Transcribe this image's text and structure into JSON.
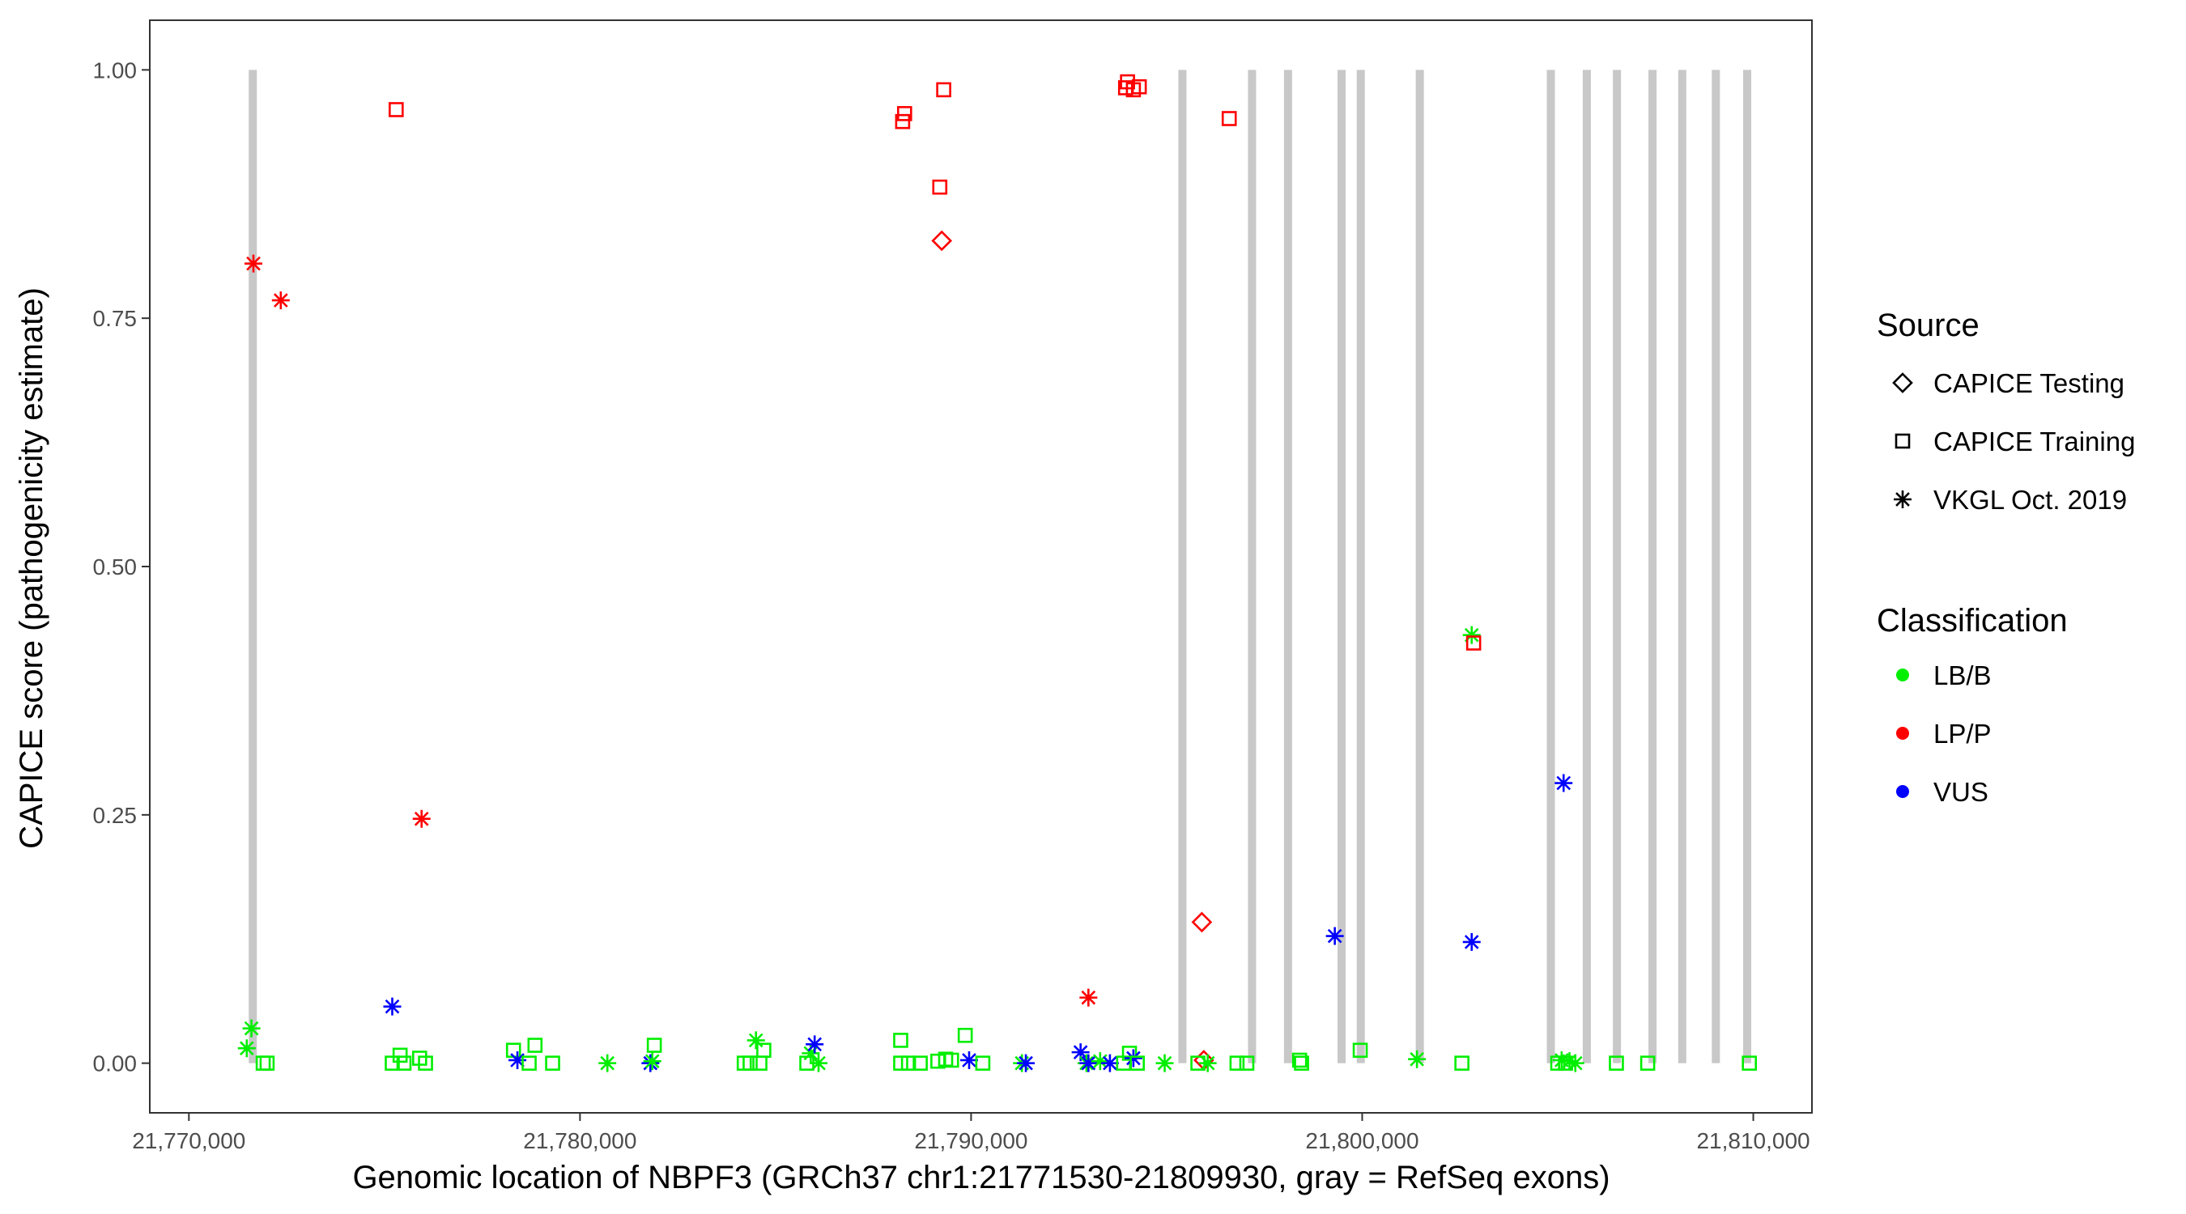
{
  "chart_data": {
    "type": "scatter",
    "xlabel": "Genomic location of NBPF3 (GRCh37 chr1:21771530-21809930, gray = RefSeq exons)",
    "ylabel": "CAPICE score (pathogenicity estimate)",
    "xlim": [
      21769000,
      21811500
    ],
    "ylim": [
      -0.05,
      1.05
    ],
    "x_ticks": [
      21770000,
      21780000,
      21790000,
      21800000,
      21810000
    ],
    "x_tick_labels": [
      "21,770,000",
      "21,780,000",
      "21,790,000",
      "21,800,000",
      "21,810,000"
    ],
    "y_ticks": [
      0,
      0.25,
      0.5,
      0.75,
      1.0
    ],
    "y_tick_labels": [
      "0.00",
      "0.25",
      "0.50",
      "0.75",
      "1.00"
    ],
    "grid": false,
    "exon_color": "#c8c8c8",
    "exons": [
      [
        21771530,
        21771680
      ],
      [
        21795300,
        21795430
      ],
      [
        21797080,
        21797170
      ],
      [
        21798000,
        21798110
      ],
      [
        21799370,
        21799420
      ],
      [
        21799860,
        21799990
      ],
      [
        21801370,
        21801430
      ],
      [
        21804720,
        21804820
      ],
      [
        21805640,
        21805700
      ],
      [
        21806410,
        21806510
      ],
      [
        21807320,
        21807390
      ],
      [
        21808080,
        21808170
      ],
      [
        21808940,
        21808990
      ],
      [
        21809740,
        21809860
      ]
    ],
    "legend_position": "right",
    "legend_source_title": "Source",
    "legend_class_title": "Classification",
    "source_items": [
      {
        "name": "CAPICE Testing",
        "shape": "diamond"
      },
      {
        "name": "CAPICE Training",
        "shape": "square"
      },
      {
        "name": "VKGL Oct. 2019",
        "shape": "star"
      }
    ],
    "class_items": [
      {
        "name": "LB/B",
        "color": "#00ee00"
      },
      {
        "name": "LP/P",
        "color": "#ff0000"
      },
      {
        "name": "VUS",
        "color": "#0000ff"
      }
    ],
    "points": [
      {
        "x": 21771480,
        "y": 0.015,
        "source": "VKGL Oct. 2019",
        "class": "LB/B"
      },
      {
        "x": 21771600,
        "y": 0.035,
        "source": "VKGL Oct. 2019",
        "class": "LB/B"
      },
      {
        "x": 21771900,
        "y": 0.0,
        "source": "CAPICE Training",
        "class": "LB/B"
      },
      {
        "x": 21772000,
        "y": 0.0,
        "source": "CAPICE Training",
        "class": "LB/B"
      },
      {
        "x": 21771650,
        "y": 0.805,
        "source": "VKGL Oct. 2019",
        "class": "LP/P"
      },
      {
        "x": 21772350,
        "y": 0.768,
        "source": "VKGL Oct. 2019",
        "class": "LP/P"
      },
      {
        "x": 21775300,
        "y": 0.96,
        "source": "CAPICE Training",
        "class": "LP/P"
      },
      {
        "x": 21775200,
        "y": 0.057,
        "source": "VKGL Oct. 2019",
        "class": "VUS"
      },
      {
        "x": 21775200,
        "y": 0.0,
        "source": "CAPICE Training",
        "class": "LB/B"
      },
      {
        "x": 21775400,
        "y": 0.008,
        "source": "CAPICE Training",
        "class": "LB/B"
      },
      {
        "x": 21775500,
        "y": 0.0,
        "source": "CAPICE Training",
        "class": "LB/B"
      },
      {
        "x": 21775900,
        "y": 0.005,
        "source": "CAPICE Training",
        "class": "LB/B"
      },
      {
        "x": 21776050,
        "y": 0.0,
        "source": "CAPICE Training",
        "class": "LB/B"
      },
      {
        "x": 21775950,
        "y": 0.246,
        "source": "VKGL Oct. 2019",
        "class": "LP/P"
      },
      {
        "x": 21778300,
        "y": 0.013,
        "source": "CAPICE Training",
        "class": "LB/B"
      },
      {
        "x": 21778400,
        "y": 0.003,
        "source": "VKGL Oct. 2019",
        "class": "VUS"
      },
      {
        "x": 21778700,
        "y": 0.0,
        "source": "CAPICE Training",
        "class": "LB/B"
      },
      {
        "x": 21778850,
        "y": 0.018,
        "source": "CAPICE Training",
        "class": "LB/B"
      },
      {
        "x": 21779300,
        "y": 0.0,
        "source": "CAPICE Training",
        "class": "LB/B"
      },
      {
        "x": 21780700,
        "y": 0.0,
        "source": "VKGL Oct. 2019",
        "class": "LB/B"
      },
      {
        "x": 21781800,
        "y": 0.0,
        "source": "VKGL Oct. 2019",
        "class": "VUS"
      },
      {
        "x": 21781850,
        "y": 0.002,
        "source": "VKGL Oct. 2019",
        "class": "LB/B"
      },
      {
        "x": 21781900,
        "y": 0.018,
        "source": "CAPICE Training",
        "class": "LB/B"
      },
      {
        "x": 21784200,
        "y": 0.0,
        "source": "CAPICE Training",
        "class": "LB/B"
      },
      {
        "x": 21784350,
        "y": 0.0,
        "source": "CAPICE Training",
        "class": "LB/B"
      },
      {
        "x": 21784500,
        "y": 0.023,
        "source": "VKGL Oct. 2019",
        "class": "LB/B"
      },
      {
        "x": 21784600,
        "y": 0.0,
        "source": "CAPICE Training",
        "class": "LB/B"
      },
      {
        "x": 21784700,
        "y": 0.013,
        "source": "CAPICE Training",
        "class": "LB/B"
      },
      {
        "x": 21785800,
        "y": 0.0,
        "source": "CAPICE Training",
        "class": "LB/B"
      },
      {
        "x": 21785900,
        "y": 0.01,
        "source": "VKGL Oct. 2019",
        "class": "LB/B"
      },
      {
        "x": 21786000,
        "y": 0.019,
        "source": "VKGL Oct. 2019",
        "class": "VUS"
      },
      {
        "x": 21786100,
        "y": 0.0,
        "source": "VKGL Oct. 2019",
        "class": "LB/B"
      },
      {
        "x": 21788200,
        "y": 0.023,
        "source": "CAPICE Training",
        "class": "LB/B"
      },
      {
        "x": 21788200,
        "y": 0.0,
        "source": "CAPICE Training",
        "class": "LB/B"
      },
      {
        "x": 21788400,
        "y": 0.0,
        "source": "CAPICE Training",
        "class": "LB/B"
      },
      {
        "x": 21788700,
        "y": 0.0,
        "source": "CAPICE Training",
        "class": "LB/B"
      },
      {
        "x": 21788250,
        "y": 0.948,
        "source": "CAPICE Training",
        "class": "LP/P"
      },
      {
        "x": 21788300,
        "y": 0.956,
        "source": "CAPICE Training",
        "class": "LP/P"
      },
      {
        "x": 21789300,
        "y": 0.98,
        "source": "CAPICE Training",
        "class": "LP/P"
      },
      {
        "x": 21789200,
        "y": 0.882,
        "source": "CAPICE Training",
        "class": "LP/P"
      },
      {
        "x": 21789250,
        "y": 0.828,
        "source": "CAPICE Testing",
        "class": "LP/P"
      },
      {
        "x": 21789150,
        "y": 0.002,
        "source": "CAPICE Training",
        "class": "LB/B"
      },
      {
        "x": 21789350,
        "y": 0.004,
        "source": "CAPICE Training",
        "class": "LB/B"
      },
      {
        "x": 21789500,
        "y": 0.003,
        "source": "CAPICE Training",
        "class": "LB/B"
      },
      {
        "x": 21789850,
        "y": 0.028,
        "source": "CAPICE Training",
        "class": "LB/B"
      },
      {
        "x": 21789950,
        "y": 0.003,
        "source": "VKGL Oct. 2019",
        "class": "VUS"
      },
      {
        "x": 21790300,
        "y": 0.0,
        "source": "CAPICE Training",
        "class": "LB/B"
      },
      {
        "x": 21791300,
        "y": 0.0,
        "source": "VKGL Oct. 2019",
        "class": "LB/B"
      },
      {
        "x": 21791400,
        "y": 0.0,
        "source": "VKGL Oct. 2019",
        "class": "VUS"
      },
      {
        "x": 21792800,
        "y": 0.011,
        "source": "VKGL Oct. 2019",
        "class": "VUS"
      },
      {
        "x": 21792950,
        "y": 0.0,
        "source": "VKGL Oct. 2019",
        "class": "LB/B"
      },
      {
        "x": 21793000,
        "y": 0.0,
        "source": "VKGL Oct. 2019",
        "class": "VUS"
      },
      {
        "x": 21793000,
        "y": 0.066,
        "source": "VKGL Oct. 2019",
        "class": "LP/P"
      },
      {
        "x": 21793300,
        "y": 0.002,
        "source": "VKGL Oct. 2019",
        "class": "LB/B"
      },
      {
        "x": 21793550,
        "y": 0.0,
        "source": "VKGL Oct. 2019",
        "class": "VUS"
      },
      {
        "x": 21793900,
        "y": 0.0,
        "source": "CAPICE Training",
        "class": "LB/B"
      },
      {
        "x": 21794000,
        "y": 0.988,
        "source": "CAPICE Training",
        "class": "LP/P"
      },
      {
        "x": 21793950,
        "y": 0.982,
        "source": "CAPICE Training",
        "class": "LP/P"
      },
      {
        "x": 21794150,
        "y": 0.98,
        "source": "CAPICE Training",
        "class": "LP/P"
      },
      {
        "x": 21794300,
        "y": 0.983,
        "source": "CAPICE Training",
        "class": "LP/P"
      },
      {
        "x": 21794050,
        "y": 0.01,
        "source": "CAPICE Training",
        "class": "LB/B"
      },
      {
        "x": 21794150,
        "y": 0.005,
        "source": "VKGL Oct. 2019",
        "class": "VUS"
      },
      {
        "x": 21794250,
        "y": 0.0,
        "source": "CAPICE Training",
        "class": "LB/B"
      },
      {
        "x": 21794950,
        "y": 0.0,
        "source": "VKGL Oct. 2019",
        "class": "LB/B"
      },
      {
        "x": 21795900,
        "y": 0.142,
        "source": "CAPICE Testing",
        "class": "LP/P"
      },
      {
        "x": 21795950,
        "y": 0.003,
        "source": "CAPICE Testing",
        "class": "LP/P"
      },
      {
        "x": 21795800,
        "y": 0.0,
        "source": "CAPICE Training",
        "class": "LB/B"
      },
      {
        "x": 21796050,
        "y": 0.0,
        "source": "VKGL Oct. 2019",
        "class": "LB/B"
      },
      {
        "x": 21796600,
        "y": 0.951,
        "source": "CAPICE Training",
        "class": "LP/P"
      },
      {
        "x": 21796800,
        "y": 0.0,
        "source": "CAPICE Training",
        "class": "LB/B"
      },
      {
        "x": 21797050,
        "y": 0.0,
        "source": "CAPICE Training",
        "class": "LB/B"
      },
      {
        "x": 21798400,
        "y": 0.003,
        "source": "CAPICE Training",
        "class": "LB/B"
      },
      {
        "x": 21798450,
        "y": 0.0,
        "source": "CAPICE Training",
        "class": "LB/B"
      },
      {
        "x": 21799300,
        "y": 0.128,
        "source": "VKGL Oct. 2019",
        "class": "VUS"
      },
      {
        "x": 21799950,
        "y": 0.013,
        "source": "CAPICE Training",
        "class": "LB/B"
      },
      {
        "x": 21801400,
        "y": 0.004,
        "source": "VKGL Oct. 2019",
        "class": "LB/B"
      },
      {
        "x": 21802550,
        "y": 0.0,
        "source": "CAPICE Training",
        "class": "LB/B"
      },
      {
        "x": 21802800,
        "y": 0.431,
        "source": "VKGL Oct. 2019",
        "class": "LB/B"
      },
      {
        "x": 21802850,
        "y": 0.423,
        "source": "CAPICE Training",
        "class": "LP/P"
      },
      {
        "x": 21802800,
        "y": 0.122,
        "source": "VKGL Oct. 2019",
        "class": "VUS"
      },
      {
        "x": 21805150,
        "y": 0.282,
        "source": "VKGL Oct. 2019",
        "class": "VUS"
      },
      {
        "x": 21805000,
        "y": 0.0,
        "source": "CAPICE Training",
        "class": "LB/B"
      },
      {
        "x": 21805100,
        "y": 0.003,
        "source": "VKGL Oct. 2019",
        "class": "LB/B"
      },
      {
        "x": 21805200,
        "y": 0.0,
        "source": "CAPICE Training",
        "class": "LB/B"
      },
      {
        "x": 21805300,
        "y": 0.002,
        "source": "VKGL Oct. 2019",
        "class": "LB/B"
      },
      {
        "x": 21805450,
        "y": 0.0,
        "source": "VKGL Oct. 2019",
        "class": "LB/B"
      },
      {
        "x": 21806500,
        "y": 0.0,
        "source": "CAPICE Training",
        "class": "LB/B"
      },
      {
        "x": 21807300,
        "y": 0.0,
        "source": "CAPICE Training",
        "class": "LB/B"
      },
      {
        "x": 21809900,
        "y": 0.0,
        "source": "CAPICE Training",
        "class": "LB/B"
      }
    ]
  }
}
